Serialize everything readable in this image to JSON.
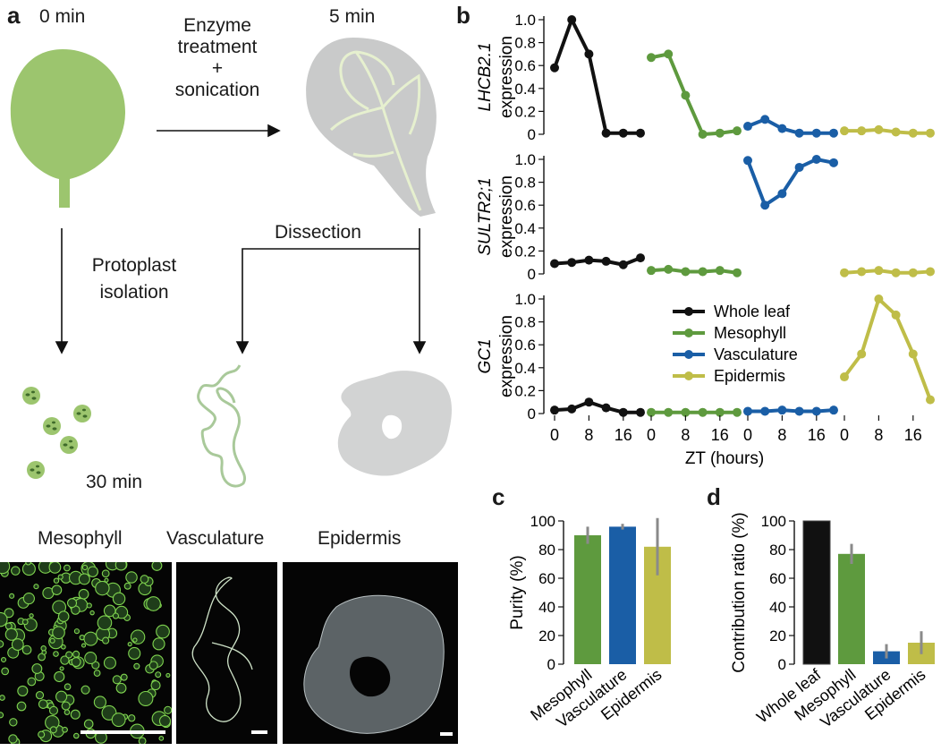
{
  "panel_a": {
    "label": "a",
    "t0": "0 min",
    "t5": "5 min",
    "t30": "30 min",
    "step_enzyme": [
      "Enzyme",
      "treatment",
      "+",
      "sonication"
    ],
    "step_protoplast": [
      "Protoplast",
      "isolation"
    ],
    "step_dissection": "Dissection",
    "tissues": [
      "Mesophyll",
      "Vasculature",
      "Epidermis"
    ]
  },
  "panel_b": {
    "label": "b"
  },
  "panel_c": {
    "label": "c"
  },
  "panel_d": {
    "label": "d"
  },
  "colors": {
    "whole_leaf": "#111111",
    "mesophyll": "#5e9a3e",
    "vasculature": "#1a5ea6",
    "epidermis": "#bfbd48",
    "error": "#8a8a8a",
    "leaf_green": "#9cc56e",
    "leaf_grey": "#c9caca"
  },
  "chart_data": [
    {
      "type": "line",
      "panel": "b",
      "x": [
        0,
        4,
        8,
        12,
        16,
        20
      ],
      "xlabel": "ZT (hours)",
      "xticks": [
        0,
        8,
        16
      ],
      "yticks": [
        "0",
        "0.2",
        "0.4",
        "0.6",
        "0.8",
        "1.0"
      ],
      "ylim": [
        0,
        1.0
      ],
      "legend": {
        "position": "inside-bottom-subplot",
        "entries": [
          "Whole leaf",
          "Mesophyll",
          "Vasculature",
          "Epidermis"
        ]
      },
      "groups": [
        "Whole leaf",
        "Mesophyll",
        "Vasculature",
        "Epidermis"
      ],
      "subplots": [
        {
          "ylabel_gene": "LHCB2.1",
          "ylabel_unit": "expression",
          "series": [
            {
              "name": "Whole leaf",
              "values": [
                0.58,
                1.0,
                0.7,
                0.01,
                0.01,
                0.01
              ]
            },
            {
              "name": "Mesophyll",
              "values": [
                0.67,
                0.7,
                0.34,
                0.0,
                0.01,
                0.03
              ]
            },
            {
              "name": "Vasculature",
              "values": [
                0.07,
                0.13,
                0.05,
                0.01,
                0.01,
                0.01
              ]
            },
            {
              "name": "Epidermis",
              "values": [
                0.03,
                0.03,
                0.04,
                0.02,
                0.01,
                0.01
              ]
            }
          ]
        },
        {
          "ylabel_gene": "SULTR2;1",
          "ylabel_unit": "expression",
          "series": [
            {
              "name": "Whole leaf",
              "values": [
                0.09,
                0.1,
                0.12,
                0.11,
                0.08,
                0.14
              ]
            },
            {
              "name": "Mesophyll",
              "values": [
                0.03,
                0.04,
                0.02,
                0.02,
                0.03,
                0.01
              ]
            },
            {
              "name": "Vasculature",
              "values": [
                0.99,
                0.6,
                0.7,
                0.93,
                1.0,
                0.97
              ]
            },
            {
              "name": "Epidermis",
              "values": [
                0.01,
                0.02,
                0.03,
                0.01,
                0.01,
                0.02
              ]
            }
          ]
        },
        {
          "ylabel_gene": "GC1",
          "ylabel_unit": "expression",
          "series": [
            {
              "name": "Whole leaf",
              "values": [
                0.03,
                0.04,
                0.1,
                0.05,
                0.01,
                0.01
              ]
            },
            {
              "name": "Mesophyll",
              "values": [
                0.01,
                0.01,
                0.01,
                0.01,
                0.01,
                0.01
              ]
            },
            {
              "name": "Vasculature",
              "values": [
                0.02,
                0.02,
                0.03,
                0.02,
                0.02,
                0.03
              ]
            },
            {
              "name": "Epidermis",
              "values": [
                0.32,
                0.52,
                1.0,
                0.86,
                0.52,
                0.12
              ]
            }
          ]
        }
      ]
    },
    {
      "type": "bar",
      "panel": "c",
      "categories": [
        "Mesophyll",
        "Vasculature",
        "Epidermis"
      ],
      "values": [
        90,
        96,
        82
      ],
      "errors": [
        6,
        2,
        20
      ],
      "ylabel": "Purity (%)",
      "ylim": [
        0,
        100
      ],
      "yticks": [
        "0",
        "20",
        "40",
        "60",
        "80",
        "100"
      ]
    },
    {
      "type": "bar",
      "panel": "d",
      "categories": [
        "Whole leaf",
        "Mesophyll",
        "Vasculature",
        "Epidermis"
      ],
      "values": [
        100,
        77,
        9,
        15
      ],
      "errors": [
        0,
        7,
        5,
        8
      ],
      "ylabel": "Contribution ratio (%)",
      "ylim": [
        0,
        100
      ],
      "yticks": [
        "0",
        "20",
        "40",
        "60",
        "80",
        "100"
      ]
    }
  ]
}
